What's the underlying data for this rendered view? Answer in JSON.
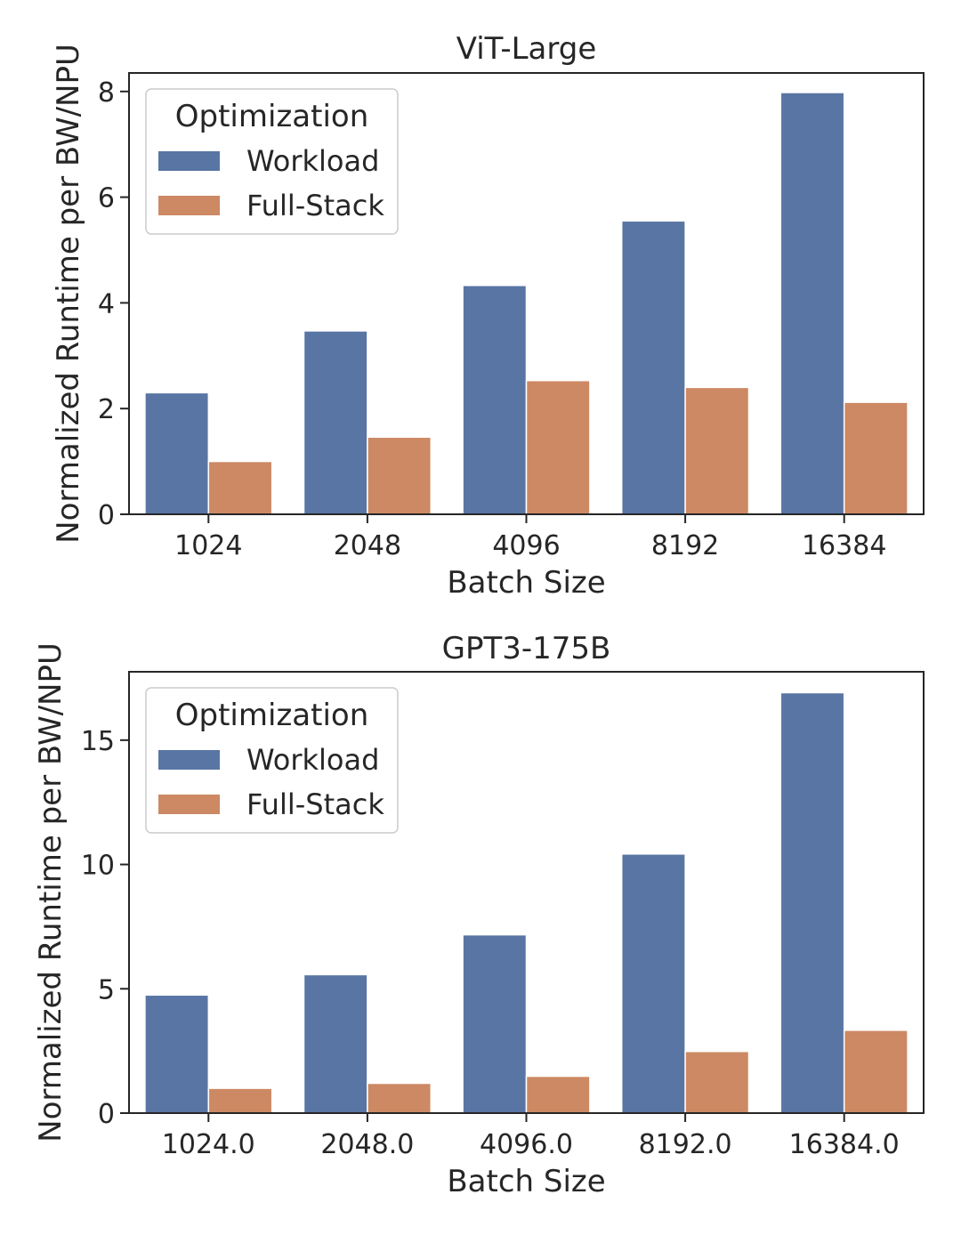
{
  "chart_data": [
    {
      "type": "bar",
      "title": "ViT-Large",
      "xlabel": "Batch Size",
      "ylabel": "Normalized Runtime per BW/NPU",
      "categories": [
        "1024",
        "2048",
        "4096",
        "8192",
        "16384"
      ],
      "ylim": [
        0,
        8.35
      ],
      "yticks": [
        0,
        2,
        4,
        6,
        8
      ],
      "grid": false,
      "legend": {
        "title": "Optimization",
        "placement": "top-left"
      },
      "series": [
        {
          "name": "Workload",
          "color": "#5875a4",
          "values": [
            2.3,
            3.47,
            4.33,
            5.55,
            7.98
          ]
        },
        {
          "name": "Full-Stack",
          "color": "#cc8963",
          "values": [
            1.0,
            1.46,
            2.53,
            2.4,
            2.12
          ]
        }
      ]
    },
    {
      "type": "bar",
      "title": "GPT3-175B",
      "xlabel": "Batch Size",
      "ylabel": "Normalized Runtime per BW/NPU",
      "categories": [
        "1024.0",
        "2048.0",
        "4096.0",
        "8192.0",
        "16384.0"
      ],
      "ylim": [
        0,
        17.75
      ],
      "yticks": [
        0,
        5,
        10,
        15
      ],
      "grid": false,
      "legend": {
        "title": "Optimization",
        "placement": "top-left"
      },
      "series": [
        {
          "name": "Workload",
          "color": "#5875a4",
          "values": [
            4.75,
            5.57,
            7.17,
            10.42,
            16.91
          ]
        },
        {
          "name": "Full-Stack",
          "color": "#cc8963",
          "values": [
            1.0,
            1.2,
            1.48,
            2.48,
            3.33
          ]
        }
      ]
    }
  ]
}
